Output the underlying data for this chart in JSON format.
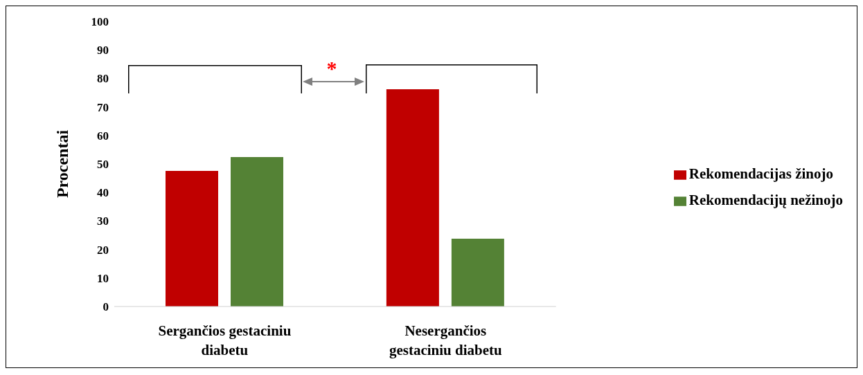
{
  "chart_data": {
    "type": "bar",
    "ylabel": "Procentai",
    "categories": [
      "Sergančios gestaciniu diabetu",
      "Nesergančios gestaciniu diabetu"
    ],
    "series": [
      {
        "name": "Rekomendacijas žinojo",
        "color": "#c00000",
        "values": [
          47.6,
          76.2
        ]
      },
      {
        "name": "Rekomendacijų nežinojo",
        "color": "#548235",
        "values": [
          52.4,
          23.8
        ]
      }
    ],
    "ylim": [
      0,
      100
    ],
    "yticks": [
      0,
      10,
      20,
      30,
      40,
      50,
      60,
      70,
      80,
      90,
      100
    ],
    "grid": false,
    "legend": "right",
    "annotations": [
      "*"
    ]
  }
}
